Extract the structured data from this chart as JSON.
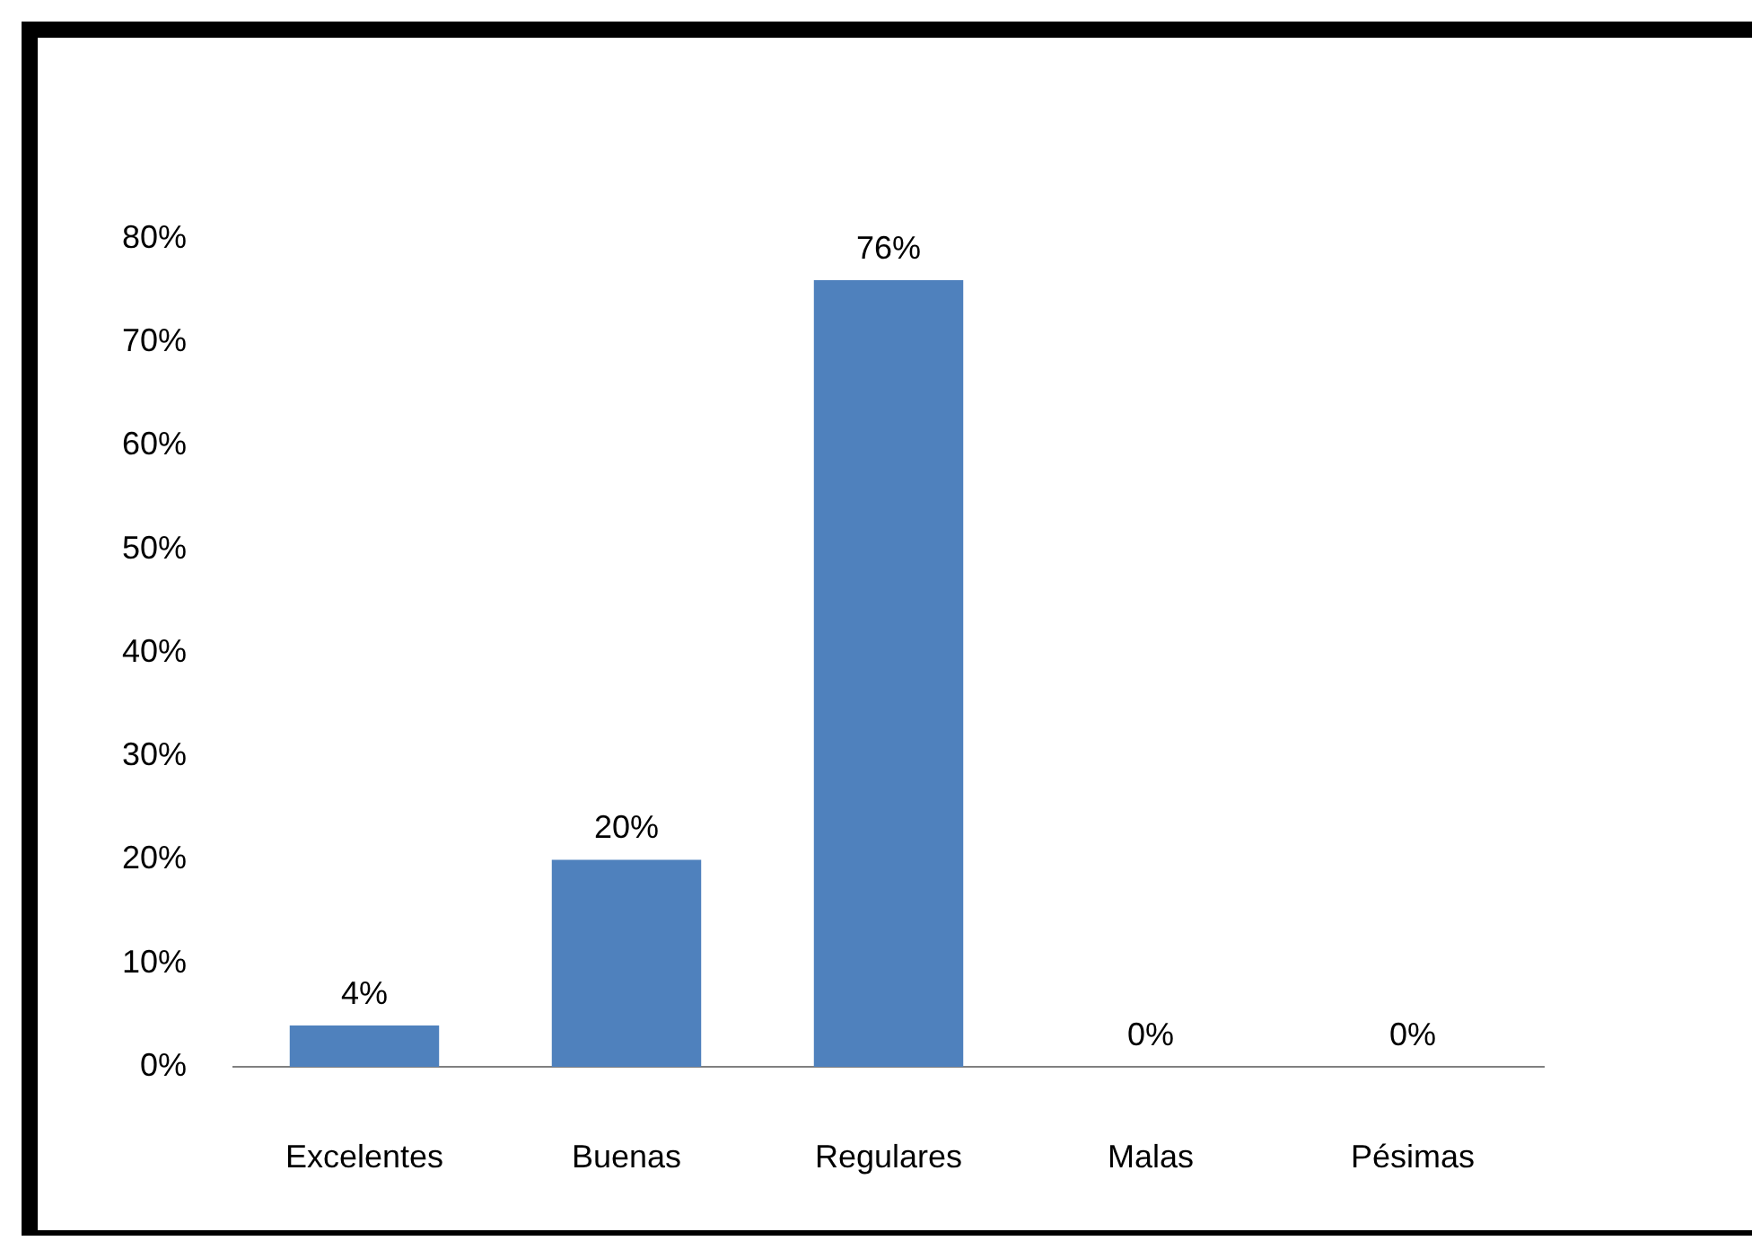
{
  "chart_data": {
    "type": "bar",
    "categories": [
      "Excelentes",
      "Buenas",
      "Regulares",
      "Malas",
      "Pésimas"
    ],
    "values": [
      4,
      20,
      76,
      0,
      0
    ],
    "color": "#4f81bd",
    "value_labels": [
      "4%",
      "20%",
      "76%",
      "0%",
      "0%"
    ],
    "ylim": [
      0,
      80
    ],
    "yticks": [
      {
        "value": 0,
        "label": "0%"
      },
      {
        "value": 10,
        "label": "10%"
      },
      {
        "value": 20,
        "label": "20%"
      },
      {
        "value": 30,
        "label": "30%"
      },
      {
        "value": 40,
        "label": "40%"
      },
      {
        "value": 50,
        "label": "50%"
      },
      {
        "value": 60,
        "label": "60%"
      },
      {
        "value": 70,
        "label": "70%"
      },
      {
        "value": 80,
        "label": "80%"
      }
    ],
    "grid": false,
    "legend": false
  }
}
